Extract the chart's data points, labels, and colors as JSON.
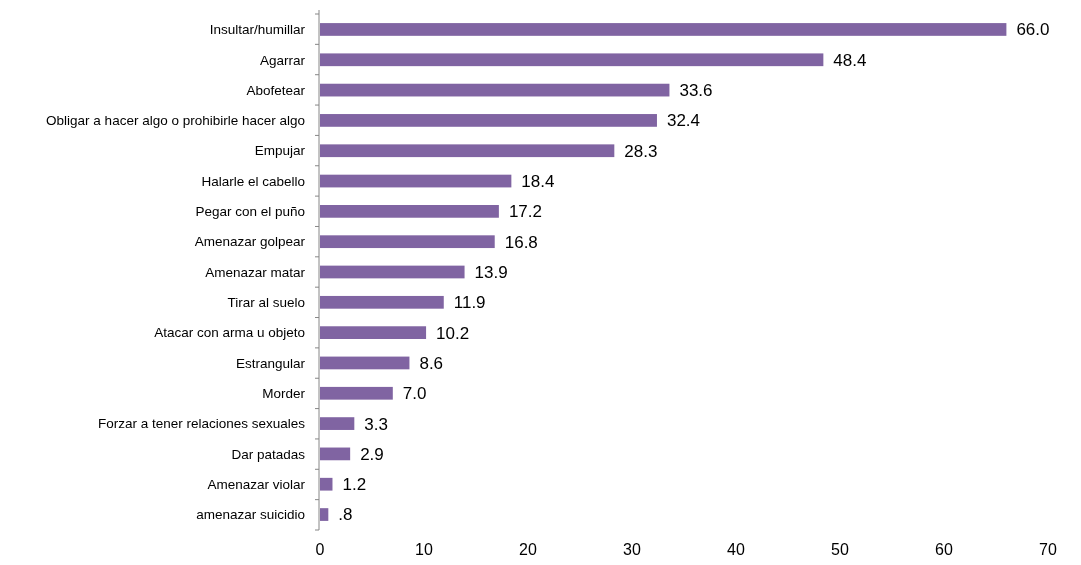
{
  "chart_data": {
    "type": "bar",
    "orientation": "horizontal",
    "categories": [
      "Insultar/humillar",
      "Agarrar",
      "Abofetear",
      "Obligar a hacer algo o prohibirle hacer algo",
      "Empujar",
      "Halarle el cabello",
      "Pegar con el puño",
      "Amenazar golpear",
      "Amenazar matar",
      "Tirar al suelo",
      "Atacar con arma u objeto",
      "Estrangular",
      "Morder",
      "Forzar a tener relaciones sexuales",
      "Dar patadas",
      "Amenazar violar",
      "amenazar suicidio"
    ],
    "values": [
      66.0,
      48.4,
      33.6,
      32.4,
      28.3,
      18.4,
      17.2,
      16.8,
      13.9,
      11.9,
      10.2,
      8.6,
      7.0,
      3.3,
      2.9,
      1.2,
      0.8
    ],
    "value_labels": [
      "66.0",
      "48.4",
      "33.6",
      "32.4",
      "28.3",
      "18.4",
      "17.2",
      "16.8",
      "13.9",
      "11.9",
      "10.2",
      "8.6",
      "7.0",
      "3.3",
      "2.9",
      "1.2",
      ".8"
    ],
    "color": "#8064a2",
    "xlim": [
      0,
      70
    ],
    "xticks": [
      0,
      10,
      20,
      30,
      40,
      50,
      60,
      70
    ],
    "grid": false
  }
}
